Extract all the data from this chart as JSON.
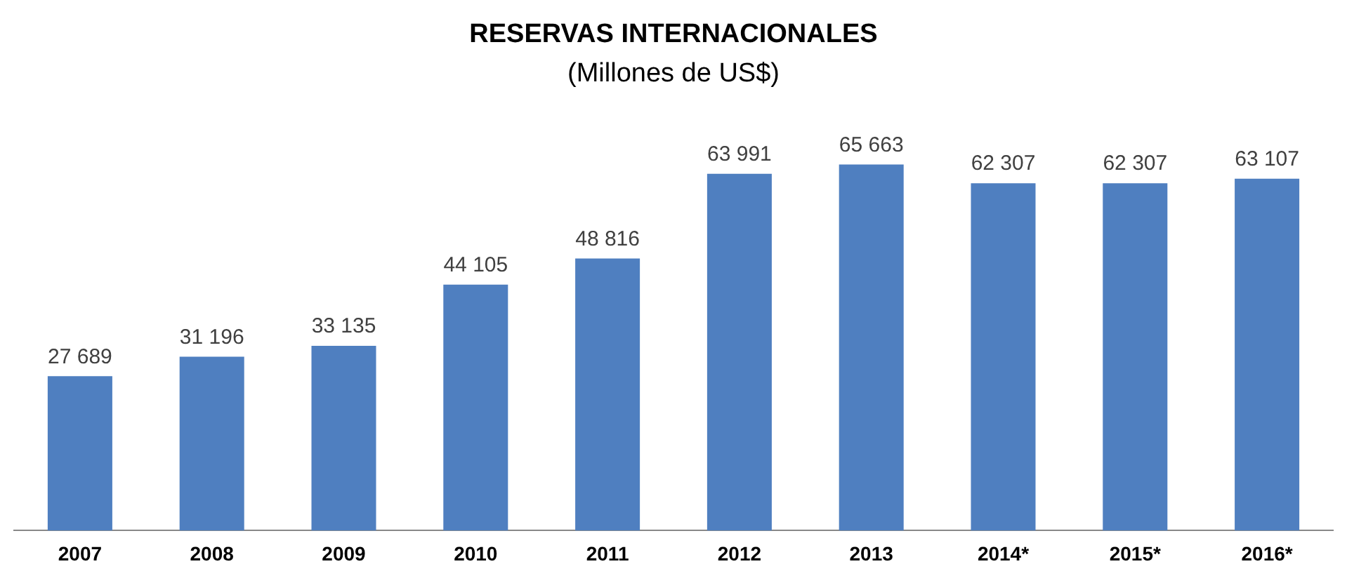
{
  "chart_data": {
    "type": "bar",
    "title": "RESERVAS INTERNACIONALES",
    "subtitle": "(Millones de US$)",
    "categories": [
      "2007",
      "2008",
      "2009",
      "2010",
      "2011",
      "2012",
      "2013",
      "2014*",
      "2015*",
      "2016*"
    ],
    "values": [
      27689,
      31196,
      33135,
      44105,
      48816,
      63991,
      65663,
      62307,
      62307,
      63107
    ],
    "value_labels": [
      "27 689",
      "31 196",
      "33 135",
      "44 105",
      "48 816",
      "63 991",
      "65 663",
      "62 307",
      "62 307",
      "63 107"
    ],
    "color": "#4f7fc0",
    "grid": false,
    "legend": false
  }
}
